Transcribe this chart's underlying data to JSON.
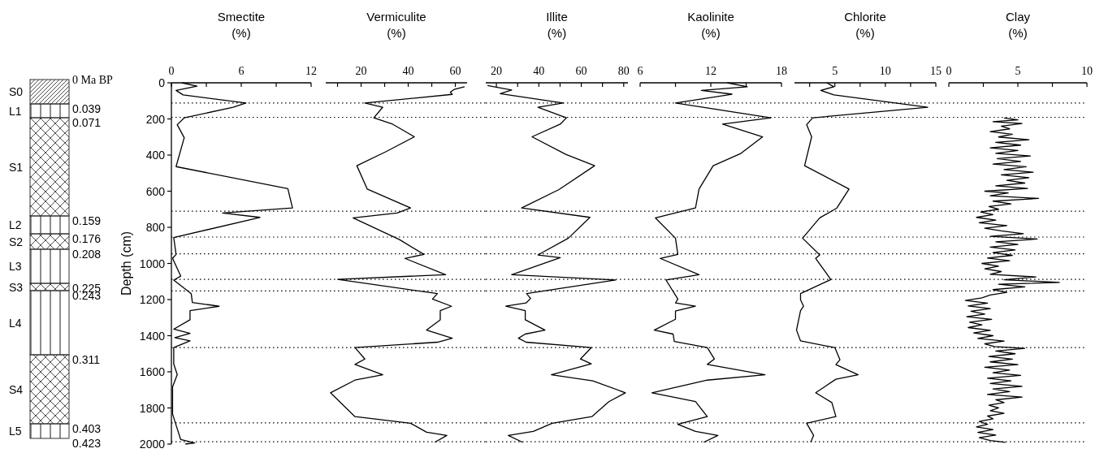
{
  "chart_data": [
    {
      "type": "other",
      "categories": [
        "S0",
        "L1",
        "S1",
        "L2",
        "S2",
        "L3",
        "S3",
        "L4",
        "S4",
        "L5"
      ],
      "annotations": [
        "0 Ma BP",
        "0.039",
        "0.071",
        "0.159",
        "0.176",
        "0.208",
        "0.225",
        "0.243",
        "0.311",
        "0.403",
        "0.423"
      ]
    },
    {
      "type": "line",
      "title": "Smectite",
      "xlabel": "(%)",
      "ylabel": "Depth (cm)",
      "xlim": [
        0,
        12
      ],
      "xticks": [
        0,
        {
          "value": 3,
          "label": null
        },
        6,
        {
          "value": 9,
          "label": null
        },
        12
      ],
      "ylim": [
        2000,
        0
      ],
      "yticks": [
        0,
        200,
        400,
        600,
        800,
        1000,
        1200,
        1400,
        1600,
        1800,
        2000
      ],
      "ref_lines": [
        {
          "axis": "y",
          "value": 112
        },
        {
          "axis": "y",
          "value": 191
        },
        {
          "axis": "y",
          "value": 711
        },
        {
          "axis": "y",
          "value": 854
        },
        {
          "axis": "y",
          "value": 947
        },
        {
          "axis": "y",
          "value": 1088
        },
        {
          "axis": "y",
          "value": 1152
        },
        {
          "axis": "y",
          "value": 1466
        },
        {
          "axis": "y",
          "value": 1883
        },
        {
          "axis": "y",
          "value": 1987
        }
      ],
      "series": [
        {
          "color": "#000000",
          "x": [
            0.9,
            2.2,
            0.4,
            1.0,
            6.4,
            5.3,
            1.1,
            0.5,
            1.1,
            0.4,
            10.0,
            10.4,
            4.4,
            7.6,
            0.2,
            0.4,
            0.1,
            0.8,
            0.2,
            1.7,
            1.8,
            4.1,
            1.6,
            1.6,
            0.2,
            1.6,
            0.3,
            1.6,
            0.2,
            0.2,
            0.5,
            0.1,
            0.1,
            0.5,
            0.8,
            2.0,
            1.2
          ],
          "values": [
            0,
            19,
            42,
            67,
            112,
            135,
            194,
            232,
            304,
            464,
            586,
            693,
            721,
            745,
            857,
            950,
            972,
            1070,
            1092,
            1167,
            1216,
            1237,
            1261,
            1312,
            1364,
            1387,
            1411,
            1429,
            1466,
            1556,
            1616,
            1683,
            1833,
            1915,
            1975,
            1994,
            2000
          ]
        }
      ]
    },
    {
      "type": "line",
      "title": "Vermiculite",
      "xlabel": "(%)",
      "xlim": [
        5,
        65
      ],
      "xticks": [
        {
          "value": 10,
          "label": null
        },
        20,
        {
          "value": 30,
          "label": null
        },
        40,
        {
          "value": 50,
          "label": null
        },
        60
      ],
      "ylim": [
        2000,
        0
      ],
      "tick_labels": "x",
      "ref_lines": [
        {
          "axis": "y",
          "value": 112
        },
        {
          "axis": "y",
          "value": 191
        },
        {
          "axis": "y",
          "value": 711
        },
        {
          "axis": "y",
          "value": 854
        },
        {
          "axis": "y",
          "value": 947
        },
        {
          "axis": "y",
          "value": 1088
        },
        {
          "axis": "y",
          "value": 1152
        },
        {
          "axis": "y",
          "value": 1466
        },
        {
          "axis": "y",
          "value": 1883
        },
        {
          "axis": "y",
          "value": 1987
        }
      ],
      "series": [
        {
          "color": "#000000",
          "x": [
            63.9,
            59.5,
            57.9,
            58.7,
            21.6,
            29.2,
            25.4,
            33.4,
            42.6,
            30.6,
            18.2,
            22.6,
            41,
            35.3,
            16.6,
            36.3,
            46.7,
            38.6,
            55.9,
            10.1,
            52.4,
            50.3,
            58.4,
            53.6,
            53.6,
            47.8,
            58.7,
            52.4,
            17.4,
            21.6,
            17.4,
            29.2,
            17.4,
            7.0,
            17.4,
            41.0,
            47.8,
            56.4,
            51.3
          ],
          "values": [
            22,
            37,
            52,
            64,
            112,
            135,
            194,
            229,
            299,
            381,
            459,
            588,
            693,
            721,
            748,
            868,
            950,
            972,
            1062,
            1088,
            1167,
            1197,
            1237,
            1261,
            1312,
            1369,
            1414,
            1436,
            1466,
            1529,
            1559,
            1616,
            1646,
            1716,
            1848,
            1885,
            1934,
            1952,
            1990
          ]
        }
      ]
    },
    {
      "type": "line",
      "title": "Illite",
      "xlabel": "(%)",
      "xlim": [
        15,
        82
      ],
      "xticks": [
        20,
        {
          "value": 30,
          "label": null
        },
        40,
        {
          "value": 50,
          "label": null
        },
        60,
        {
          "value": 70,
          "label": null
        },
        80
      ],
      "ylim": [
        2000,
        0
      ],
      "tick_labels": "x",
      "ref_lines": [
        {
          "axis": "y",
          "value": 112
        },
        {
          "axis": "y",
          "value": 191
        },
        {
          "axis": "y",
          "value": 711
        },
        {
          "axis": "y",
          "value": 854
        },
        {
          "axis": "y",
          "value": 947
        },
        {
          "axis": "y",
          "value": 1088
        },
        {
          "axis": "y",
          "value": 1152
        },
        {
          "axis": "y",
          "value": 1466
        },
        {
          "axis": "y",
          "value": 1883
        },
        {
          "axis": "y",
          "value": 1987
        }
      ],
      "series": [
        {
          "color": "#000000",
          "x": [
            15.8,
            27.2,
            21.8,
            51.4,
            39.6,
            53,
            50.1,
            36.8,
            52.7,
            66.3,
            49.5,
            31.9,
            64.1,
            53.9,
            39.6,
            50.1,
            27.2,
            76.2,
            34.2,
            36.1,
            34.0,
            24.4,
            33.6,
            33.6,
            42.9,
            33.6,
            30.4,
            34,
            64.7,
            59.6,
            64.7,
            45.9,
            65.4,
            80.8,
            73,
            65,
            46.3,
            37.4,
            25.6,
            32.3
          ],
          "values": [
            15,
            40,
            60,
            112,
            135,
            194,
            229,
            299,
            396,
            459,
            591,
            693,
            745,
            860,
            953,
            968,
            1062,
            1092,
            1167,
            1194,
            1219,
            1237,
            1261,
            1312,
            1369,
            1391,
            1414,
            1436,
            1466,
            1529,
            1556,
            1616,
            1650,
            1716,
            1765,
            1848,
            1885,
            1930,
            1952,
            1990
          ]
        }
      ]
    },
    {
      "type": "line",
      "title": "Kaolinite",
      "xlabel": "(%)",
      "xlim": [
        6,
        18
      ],
      "xticks": [
        6,
        {
          "value": 9,
          "label": null
        },
        12,
        {
          "value": 15,
          "label": null
        },
        18
      ],
      "ylim": [
        2000,
        0
      ],
      "tick_labels": "x",
      "ref_lines": [
        {
          "axis": "y",
          "value": 112
        },
        {
          "axis": "y",
          "value": 191
        },
        {
          "axis": "y",
          "value": 711
        },
        {
          "axis": "y",
          "value": 854
        },
        {
          "axis": "y",
          "value": 947
        },
        {
          "axis": "y",
          "value": 1088
        },
        {
          "axis": "y",
          "value": 1152
        },
        {
          "axis": "y",
          "value": 1466
        },
        {
          "axis": "y",
          "value": 1883
        },
        {
          "axis": "y",
          "value": 1987
        }
      ],
      "series": [
        {
          "color": "#000000",
          "x": [
            13.4,
            15.1,
            11.2,
            13.8,
            9.0,
            17.1,
            13.0,
            16.4,
            14.5,
            12.2,
            11.0,
            10.7,
            7.3,
            9.0,
            9.2,
            7.7,
            11.0,
            8.2,
            9.2,
            9.0,
            10.7,
            9.0,
            9.0,
            7.2,
            8.8,
            8.9,
            11.7,
            12.3,
            11.7,
            16.6,
            11.7,
            7.0,
            10.7,
            11.7,
            9.2,
            10.7,
            12.6,
            11.4
          ],
          "values": [
            0,
            22,
            42,
            63,
            112,
            194,
            229,
            299,
            393,
            459,
            588,
            693,
            748,
            860,
            950,
            972,
            1062,
            1092,
            1197,
            1219,
            1237,
            1264,
            1309,
            1369,
            1391,
            1432,
            1466,
            1529,
            1559,
            1616,
            1646,
            1716,
            1765,
            1848,
            1890,
            1930,
            1952,
            1990
          ]
        }
      ]
    },
    {
      "type": "line",
      "title": "Chlorite",
      "xlabel": "(%)",
      "xlim": [
        1,
        15
      ],
      "xticks": [
        {
          "value": 2.5,
          "label": null
        },
        5,
        {
          "value": 7.5,
          "label": null
        },
        10,
        {
          "value": 12.5,
          "label": null
        },
        15
      ],
      "ylim": [
        2000,
        0
      ],
      "tick_labels": "x",
      "ref_lines": [
        {
          "axis": "y",
          "value": 112
        },
        {
          "axis": "y",
          "value": 191
        },
        {
          "axis": "y",
          "value": 711
        },
        {
          "axis": "y",
          "value": 854
        },
        {
          "axis": "y",
          "value": 947
        },
        {
          "axis": "y",
          "value": 1088
        },
        {
          "axis": "y",
          "value": 1152
        },
        {
          "axis": "y",
          "value": 1466
        },
        {
          "axis": "y",
          "value": 1883
        },
        {
          "axis": "y",
          "value": 1987
        }
      ],
      "series": [
        {
          "color": "#000000",
          "x": [
            4.2,
            4.9,
            3.6,
            4.9,
            14.2,
            2.8,
            2.2,
            2.7,
            2.0,
            6.4,
            5.2,
            3.5,
            1.8,
            3.5,
            3.1,
            4.6,
            1.6,
            1.6,
            1.9,
            1.6,
            1.2,
            1.6,
            5.0,
            5.5,
            5.1,
            7.3,
            5.1,
            3.1,
            4.7,
            5.1,
            2.2,
            2.9,
            2.6
          ],
          "values": [
            0,
            22,
            42,
            67,
            135,
            194,
            232,
            299,
            459,
            588,
            693,
            748,
            860,
            953,
            972,
            1089,
            1167,
            1201,
            1237,
            1261,
            1369,
            1429,
            1466,
            1533,
            1560,
            1616,
            1641,
            1716,
            1770,
            1848,
            1885,
            1952,
            1990
          ]
        }
      ]
    },
    {
      "type": "line",
      "title": "Clay",
      "xlabel": "(%)",
      "xlim": [
        0,
        10
      ],
      "xticks": [
        0,
        {
          "value": 2.5,
          "label": null
        },
        5,
        {
          "value": 7.5,
          "label": null
        },
        10
      ],
      "ylim": [
        2000,
        0
      ],
      "tick_labels": "x",
      "ref_lines": [
        {
          "axis": "y",
          "value": 112
        },
        {
          "axis": "y",
          "value": 191
        },
        {
          "axis": "y",
          "value": 711
        },
        {
          "axis": "y",
          "value": 854
        },
        {
          "axis": "y",
          "value": 947
        },
        {
          "axis": "y",
          "value": 1088
        },
        {
          "axis": "y",
          "value": 1152
        },
        {
          "axis": "y",
          "value": 1466
        },
        {
          "axis": "y",
          "value": 1883
        },
        {
          "axis": "y",
          "value": 1987
        }
      ],
      "series": [
        {
          "color": "#000000",
          "x": [
            4.0,
            5.0,
            3.2,
            5.3,
            3.8,
            4.4,
            3.0,
            4.6,
            3.6,
            5.8,
            3.4,
            5.2,
            3.0,
            5.0,
            3.4,
            5.9,
            3.5,
            5.2,
            3.2,
            5.6,
            4.0,
            6.1,
            3.8,
            5.8,
            4.2,
            5.5,
            3.4,
            5.7,
            2.6,
            4.3,
            3.0,
            6.5,
            3.2,
            4.5,
            2.9,
            3.6,
            2.3,
            3.2,
            2.0,
            3.4,
            2.2,
            4.2,
            2.6,
            3.8,
            5.4,
            3.0,
            6.4,
            3.4,
            5.0,
            3.0,
            4.8,
            3.2,
            4.6,
            2.8,
            4.4,
            2.4,
            3.6,
            2.6,
            3.8,
            3.0,
            6.3,
            4.0,
            8.0,
            3.6,
            5.5,
            3.2,
            4.2,
            3.0,
            2.4,
            1.2,
            2.8,
            1.4,
            3.0,
            1.6,
            2.6,
            1.3,
            3.1,
            1.5,
            2.4,
            1.4,
            3.0,
            1.8,
            3.2,
            2.1,
            4.0,
            2.6,
            3.3,
            5.5,
            3.4,
            4.8,
            2.9,
            4.6,
            3.0,
            5.0,
            2.6,
            4.4,
            3.2,
            5.2,
            2.8,
            4.5,
            3.0,
            5.3,
            3.2,
            4.4,
            2.8,
            5.3,
            3.4,
            4.0,
            2.9,
            3.6,
            3.0,
            4.0,
            2.8,
            3.2,
            2.2,
            2.8,
            2.0,
            3.2,
            2.1,
            3.4,
            2.2,
            3.0,
            4.1
          ],
          "values": [
            195,
            205,
            215,
            225,
            240,
            255,
            270,
            285,
            300,
            315,
            330,
            345,
            360,
            375,
            390,
            405,
            420,
            435,
            450,
            465,
            480,
            495,
            510,
            525,
            540,
            555,
            570,
            585,
            600,
            610,
            625,
            640,
            655,
            670,
            685,
            700,
            715,
            730,
            745,
            760,
            775,
            790,
            805,
            820,
            835,
            850,
            865,
            880,
            895,
            910,
            925,
            940,
            955,
            970,
            985,
            1000,
            1015,
            1030,
            1045,
            1060,
            1075,
            1090,
            1105,
            1115,
            1130,
            1145,
            1160,
            1175,
            1190,
            1205,
            1220,
            1235,
            1250,
            1265,
            1280,
            1295,
            1310,
            1325,
            1340,
            1355,
            1370,
            1385,
            1400,
            1415,
            1430,
            1445,
            1460,
            1470,
            1485,
            1500,
            1515,
            1530,
            1545,
            1560,
            1575,
            1590,
            1605,
            1620,
            1635,
            1650,
            1665,
            1680,
            1695,
            1710,
            1725,
            1740,
            1755,
            1770,
            1785,
            1800,
            1815,
            1830,
            1845,
            1860,
            1875,
            1890,
            1905,
            1920,
            1935,
            1950,
            1965,
            1980,
            1990
          ]
        }
      ]
    }
  ]
}
